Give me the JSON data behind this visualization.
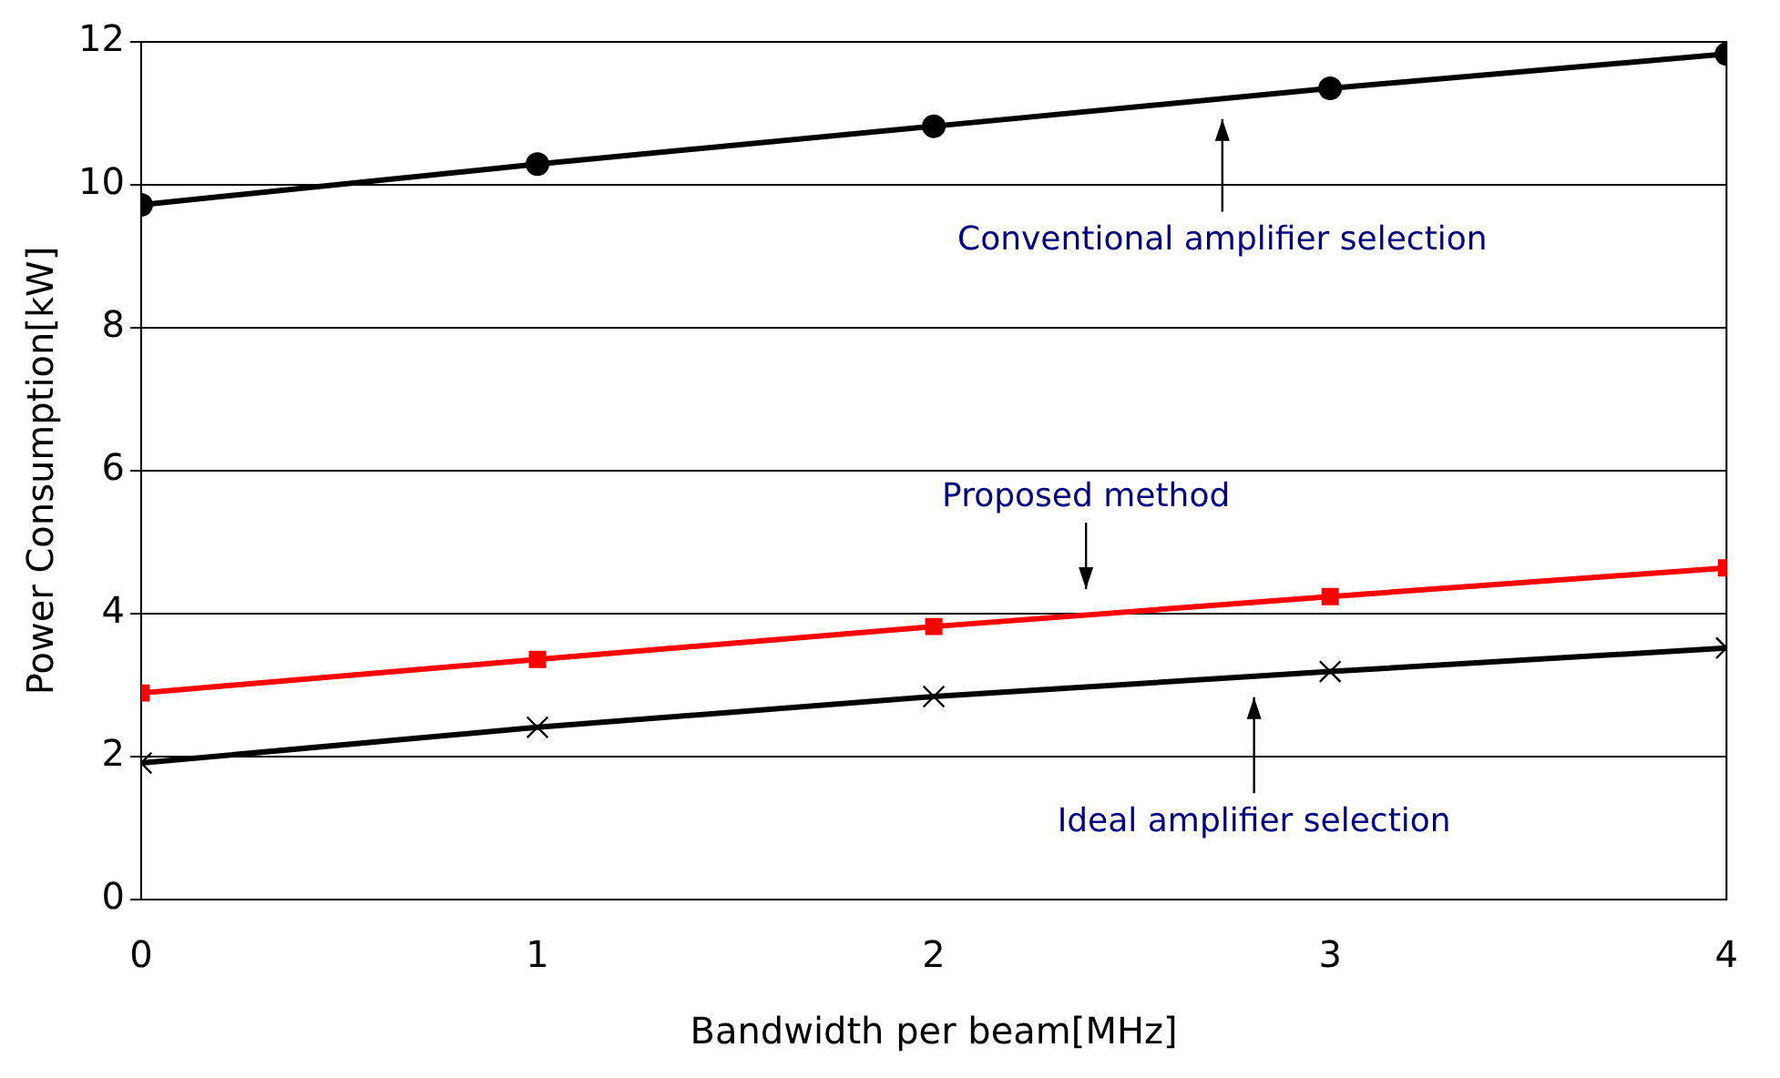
{
  "chart_data": {
    "type": "line",
    "xlabel": "Bandwidth per beam[MHz]",
    "ylabel": "Power Consumption[kW]",
    "x": [
      0,
      1,
      2,
      3,
      4
    ],
    "xlim": [
      0,
      4
    ],
    "xticks": [
      0,
      1,
      2,
      3,
      4
    ],
    "ylim": [
      0,
      12
    ],
    "yticks": [
      0,
      2,
      4,
      6,
      8,
      10,
      12
    ],
    "grid": "y",
    "legend": false,
    "series": [
      {
        "color": "#000000",
        "marker": "circle",
        "values": [
          9.72,
          10.29,
          10.82,
          11.35,
          11.83
        ]
      },
      {
        "color": "#ff0000",
        "marker": "square",
        "values": [
          2.89,
          3.36,
          3.82,
          4.24,
          4.64
        ]
      },
      {
        "color": "#000000",
        "marker": "cross",
        "values": [
          1.91,
          2.41,
          2.84,
          3.19,
          3.52
        ]
      }
    ],
    "annotations": [
      "Conventional amplifier selection",
      "Proposed method",
      "Ideal amplifier selection"
    ]
  }
}
